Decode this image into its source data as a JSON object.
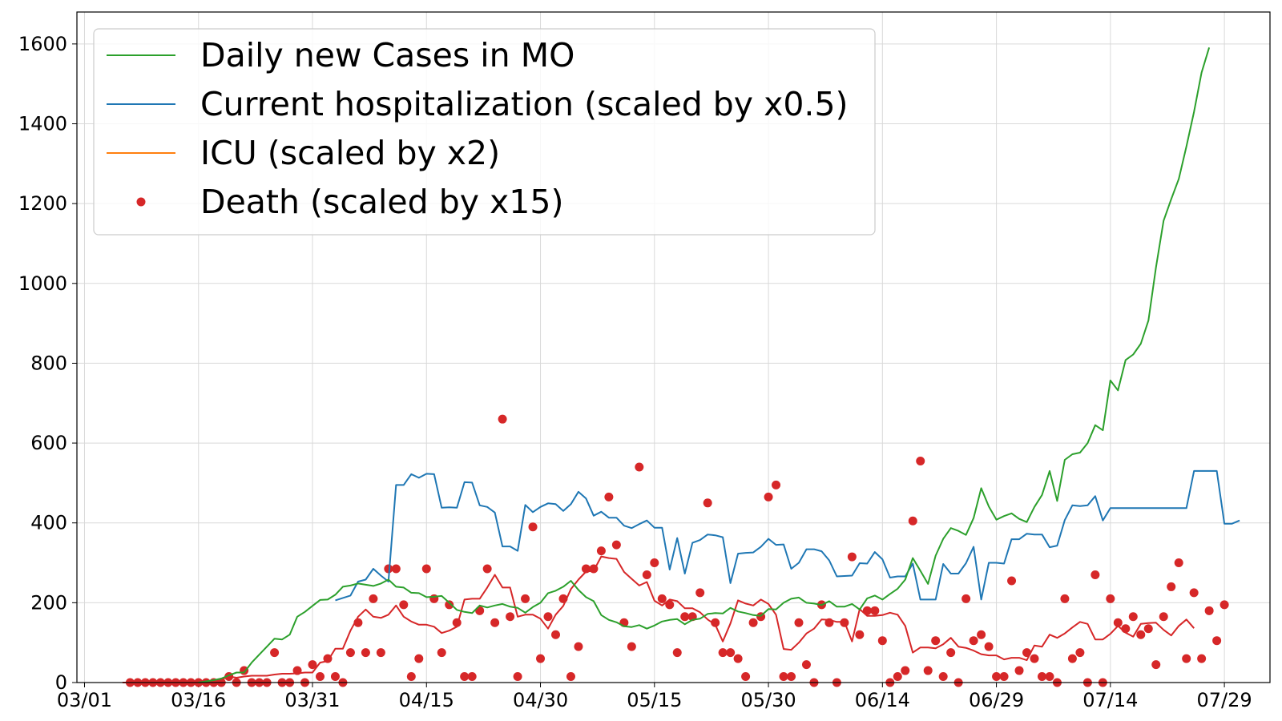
{
  "chart_data": {
    "type": "line",
    "title": "",
    "xlabel": "",
    "ylabel": "",
    "grid": true,
    "legend_position": "upper-left",
    "xlim": [
      "2020-02-29",
      "2020-08-04"
    ],
    "ylim": [
      0,
      1680
    ],
    "x_ticks": [
      {
        "date": "2020-03-01",
        "label": "03/01"
      },
      {
        "date": "2020-03-16",
        "label": "03/16"
      },
      {
        "date": "2020-03-31",
        "label": "03/31"
      },
      {
        "date": "2020-04-15",
        "label": "04/15"
      },
      {
        "date": "2020-04-30",
        "label": "04/30"
      },
      {
        "date": "2020-05-15",
        "label": "05/15"
      },
      {
        "date": "2020-05-30",
        "label": "05/30"
      },
      {
        "date": "2020-06-14",
        "label": "06/14"
      },
      {
        "date": "2020-06-29",
        "label": "06/29"
      },
      {
        "date": "2020-07-14",
        "label": "07/14"
      },
      {
        "date": "2020-07-29",
        "label": "07/29"
      }
    ],
    "y_ticks": [
      {
        "value": 0,
        "label": "0"
      },
      {
        "value": 200,
        "label": "200"
      },
      {
        "value": 400,
        "label": "400"
      },
      {
        "value": 600,
        "label": "600"
      },
      {
        "value": 800,
        "label": "800"
      },
      {
        "value": 1000,
        "label": "1000"
      },
      {
        "value": 1200,
        "label": "1200"
      },
      {
        "value": 1400,
        "label": "1400"
      },
      {
        "value": 1600,
        "label": "1600"
      }
    ],
    "series": [
      {
        "name": "Daily new Cases in MO",
        "kind": "line",
        "color": "#2ca02c",
        "start": "2020-03-16",
        "values": [
          0,
          3,
          6,
          10,
          18,
          25,
          25,
          50,
          70,
          90,
          110,
          108,
          120,
          165,
          177,
          192,
          207,
          208,
          220,
          240,
          243,
          248,
          245,
          242,
          248,
          258,
          240,
          238,
          225,
          224,
          214,
          215,
          217,
          200,
          182,
          177,
          174,
          193,
          188,
          193,
          197,
          190,
          187,
          175,
          189,
          200,
          224,
          230,
          240,
          255,
          232,
          214,
          204,
          169,
          157,
          151,
          141,
          139,
          144,
          135,
          143,
          153,
          157,
          159,
          146,
          157,
          160,
          172,
          174,
          173,
          187,
          178,
          174,
          169,
          167,
          184,
          183,
          200,
          210,
          213,
          200,
          198,
          194,
          204,
          190,
          190,
          197,
          183,
          211,
          218,
          208,
          222,
          235,
          258,
          312,
          280,
          247,
          318,
          360,
          387,
          380,
          370,
          412,
          487,
          441,
          408,
          417,
          424,
          410,
          402,
          440,
          470,
          530,
          455,
          558,
          572,
          576,
          600,
          645,
          632,
          757,
          732,
          808,
          822,
          849,
          907,
          1040,
          1157,
          1211,
          1262,
          1343,
          1430,
          1528,
          1591
        ]
      },
      {
        "name": "Current hospitalization (scaled by x0.5)",
        "kind": "line",
        "color": "#1f77b4",
        "start": "2020-04-03",
        "values": [
          206,
          212,
          218,
          253,
          258,
          285,
          268,
          253,
          495,
          495,
          522,
          513,
          523,
          522,
          438,
          439,
          438,
          502,
          501,
          444,
          440,
          426,
          341,
          341,
          330,
          445,
          427,
          440,
          449,
          447,
          430,
          447,
          478,
          461,
          418,
          428,
          413,
          413,
          393,
          387,
          397,
          406,
          388,
          388,
          283,
          362,
          273,
          350,
          357,
          371,
          369,
          364,
          249,
          323,
          325,
          326,
          340,
          360,
          345,
          346,
          285,
          300,
          334,
          334,
          329,
          306,
          266,
          267,
          268,
          299,
          298,
          327,
          309,
          263,
          266,
          266,
          298,
          208,
          208,
          208,
          297,
          273,
          273,
          299,
          340,
          208,
          300,
          300,
          298,
          359,
          359,
          373,
          371,
          371,
          339,
          343,
          407,
          444,
          442,
          444,
          467,
          406,
          437,
          437,
          437,
          437,
          437,
          437,
          437,
          437,
          437,
          437,
          437,
          530,
          530,
          530,
          530,
          398,
          398,
          406
        ]
      },
      {
        "name": "ICU (scaled by x2)",
        "kind": "line",
        "color": "#ff7f0e",
        "start": "",
        "values": []
      },
      {
        "name": "",
        "kind": "line",
        "color": "#d62728",
        "start": "2020-03-06",
        "values": [
          0,
          0,
          0,
          0,
          0,
          0,
          0,
          0,
          0,
          0,
          0,
          2,
          5,
          8,
          15,
          12,
          15,
          17,
          17,
          17,
          20,
          22,
          22,
          23,
          25,
          25,
          50,
          54,
          85,
          85,
          130,
          165,
          183,
          165,
          162,
          170,
          193,
          165,
          153,
          145,
          145,
          140,
          124,
          130,
          140,
          208,
          210,
          210,
          238,
          270,
          238,
          238,
          165,
          170,
          170,
          160,
          135,
          170,
          192,
          234,
          258,
          278,
          280,
          316,
          312,
          310,
          277,
          260,
          243,
          252,
          205,
          193,
          208,
          204,
          186,
          186,
          176,
          158,
          145,
          103,
          148,
          206,
          198,
          193,
          208,
          197,
          170,
          84,
          82,
          100,
          123,
          135,
          158,
          157,
          152,
          152,
          103,
          184,
          167,
          167,
          169,
          175,
          170,
          142,
          75,
          88,
          88,
          86,
          96,
          112,
          90,
          87,
          80,
          71,
          68,
          68,
          58,
          62,
          62,
          56,
          93,
          90,
          120,
          112,
          123,
          138,
          152,
          147,
          108,
          108,
          122,
          142,
          125,
          115,
          147,
          149,
          150,
          132,
          118,
          142,
          158,
          136
        ]
      },
      {
        "name": "Death (scaled by x15)",
        "kind": "scatter",
        "color": "#d62728",
        "start": "2020-03-07",
        "values": [
          0,
          0,
          0,
          0,
          0,
          0,
          0,
          0,
          0,
          0,
          0,
          0,
          0,
          15,
          0,
          30,
          0,
          0,
          0,
          75,
          0,
          0,
          30,
          0,
          45,
          15,
          60,
          15,
          0,
          75,
          150,
          75,
          210,
          75,
          285,
          285,
          195,
          15,
          60,
          285,
          210,
          75,
          195,
          150,
          15,
          15,
          180,
          285,
          150,
          660,
          165,
          15,
          210,
          390,
          60,
          165,
          120,
          210,
          15,
          90,
          285,
          285,
          330,
          465,
          345,
          150,
          90,
          540,
          270,
          300,
          210,
          195,
          75,
          165,
          165,
          225,
          450,
          150,
          75,
          75,
          60,
          15,
          150,
          165,
          465,
          495,
          15,
          15,
          150,
          45,
          0,
          195,
          150,
          0,
          150,
          315,
          120,
          180,
          180,
          105,
          0,
          15,
          30,
          405,
          555,
          30,
          105,
          15,
          75,
          0,
          210,
          105,
          120,
          90,
          15,
          15,
          255,
          30,
          75,
          60,
          15,
          15,
          0,
          210,
          60,
          75,
          0,
          270,
          0,
          210,
          150,
          135,
          165,
          120,
          135,
          45,
          165,
          240,
          300,
          60,
          225,
          60,
          180,
          105,
          195
        ]
      }
    ]
  }
}
